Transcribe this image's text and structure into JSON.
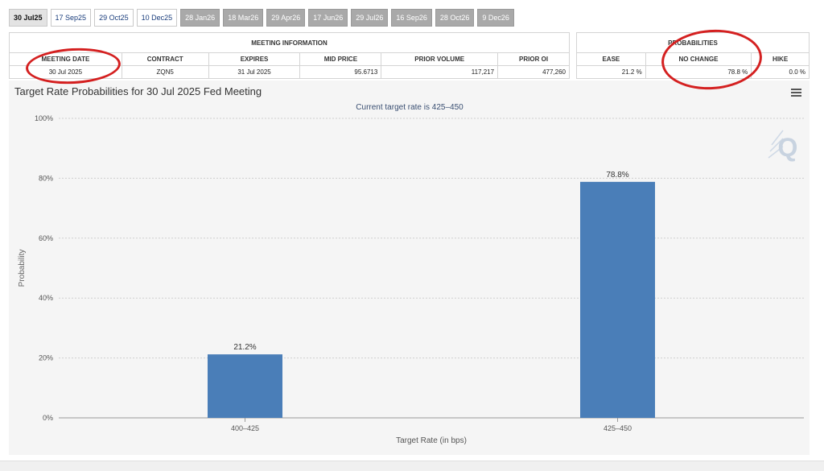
{
  "tabs": [
    {
      "label": "30 Jul25",
      "state": "active"
    },
    {
      "label": "17 Sep25",
      "state": "near"
    },
    {
      "label": "29 Oct25",
      "state": "near"
    },
    {
      "label": "10 Dec25",
      "state": "near"
    },
    {
      "label": "28 Jan26",
      "state": "far"
    },
    {
      "label": "18 Mar26",
      "state": "far"
    },
    {
      "label": "29 Apr26",
      "state": "far"
    },
    {
      "label": "17 Jun26",
      "state": "far"
    },
    {
      "label": "29 Jul26",
      "state": "far"
    },
    {
      "label": "16 Sep26",
      "state": "far"
    },
    {
      "label": "28 Oct26",
      "state": "far"
    },
    {
      "label": "9 Dec26",
      "state": "far"
    }
  ],
  "meeting": {
    "group_title": "MEETING INFORMATION",
    "headers": {
      "meeting_date": "MEETING DATE",
      "contract": "CONTRACT",
      "expires": "EXPIRES",
      "mid_price": "MID PRICE",
      "prior_volume": "PRIOR VOLUME",
      "prior_oi": "PRIOR OI"
    },
    "values": {
      "meeting_date": "30 Jul 2025",
      "contract": "ZQN5",
      "expires": "31 Jul 2025",
      "mid_price": "95.6713",
      "prior_volume": "117,217",
      "prior_oi": "477,260"
    }
  },
  "probabilities": {
    "group_title": "PROBABILITIES",
    "headers": {
      "ease": "EASE",
      "no_change": "NO CHANGE",
      "hike": "HIKE"
    },
    "values": {
      "ease": "21.2 %",
      "no_change": "78.8 %",
      "hike": "0.0 %"
    }
  },
  "colors": {
    "bar": "#4a7eb8",
    "annotation": "#d42020"
  },
  "icons": {
    "menu": "hamburger-menu-icon",
    "watermark": "q-logo-watermark"
  },
  "chart_data": {
    "type": "bar",
    "title": "Target Rate Probabilities for 30 Jul 2025 Fed Meeting",
    "subtitle": "Current target rate is 425–450",
    "xlabel": "Target Rate (in bps)",
    "ylabel": "Probability",
    "categories": [
      "400–425",
      "425–450"
    ],
    "values": [
      21.2,
      78.8
    ],
    "data_labels": [
      "21.2%",
      "78.8%"
    ],
    "ylim": [
      0,
      100
    ],
    "yticks": [
      0,
      20,
      40,
      60,
      80,
      100
    ],
    "ytick_labels": [
      "0%",
      "20%",
      "40%",
      "60%",
      "80%",
      "100%"
    ],
    "grid": true,
    "watermark_text": "Q"
  }
}
